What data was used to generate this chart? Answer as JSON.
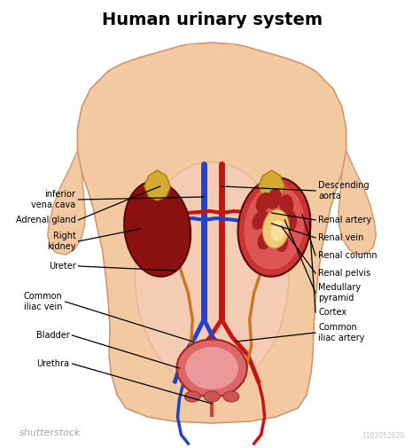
{
  "title": "Human urinary system",
  "title_fontsize": 14,
  "title_fontweight": "bold",
  "background_color": "#ffffff",
  "body_color": "#f2c9a0",
  "body_outline_color": "#d4956a",
  "abdom_color": "#f5cdb8",
  "abdom_edge": "#e8b090",
  "kidney_dark": "#8b1010",
  "kidney_mid": "#b83030",
  "kidney_light": "#cc5050",
  "adrenal_color": "#d4aa30",
  "adrenal_edge": "#aa8010",
  "artery_color": "#cc1111",
  "vein_color": "#2244cc",
  "vessel_yellow": "#d4b040",
  "bladder_color": "#dd6666",
  "bladder_edge": "#aa2222",
  "bladder_inner": "#eeaaaa",
  "label_fontsize": 7.0,
  "label_color": "#000000",
  "line_color": "#111111",
  "shutterstock_text": "shutterstock",
  "image_id": "1103052629"
}
